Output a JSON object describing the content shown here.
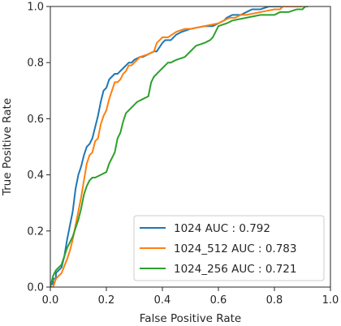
{
  "chart_data": {
    "type": "line",
    "title": "",
    "xlabel": "False Positive Rate",
    "ylabel": "True Positive Rate",
    "xlim": [
      0,
      1
    ],
    "ylim": [
      0,
      1
    ],
    "xticks": [
      "0.0",
      "0.2",
      "0.4",
      "0.6",
      "0.8",
      "1.0"
    ],
    "yticks": [
      "0.0",
      "0.2",
      "0.4",
      "0.6",
      "0.8",
      "1.0"
    ],
    "grid": false,
    "legend_position": "lower right",
    "series": [
      {
        "name": "1024 AUC : 0.792",
        "color": "#1f77b4",
        "x": [
          0.0,
          0.0,
          0.01,
          0.01,
          0.02,
          0.02,
          0.04,
          0.05,
          0.06,
          0.07,
          0.08,
          0.09,
          0.1,
          0.11,
          0.12,
          0.13,
          0.14,
          0.15,
          0.16,
          0.17,
          0.18,
          0.19,
          0.2,
          0.21,
          0.22,
          0.23,
          0.24,
          0.25,
          0.26,
          0.27,
          0.28,
          0.29,
          0.3,
          0.32,
          0.33,
          0.35,
          0.37,
          0.38,
          0.4,
          0.41,
          0.43,
          0.45,
          0.47,
          0.5,
          0.55,
          0.58,
          0.6,
          0.62,
          0.63,
          0.65,
          0.68,
          0.7,
          0.72,
          0.75,
          0.78,
          0.82,
          0.85,
          0.88
        ],
        "y": [
          0.0,
          0.01,
          0.01,
          0.03,
          0.03,
          0.05,
          0.07,
          0.11,
          0.17,
          0.22,
          0.27,
          0.35,
          0.4,
          0.43,
          0.47,
          0.5,
          0.51,
          0.53,
          0.57,
          0.61,
          0.66,
          0.7,
          0.71,
          0.74,
          0.75,
          0.76,
          0.76,
          0.77,
          0.78,
          0.79,
          0.8,
          0.8,
          0.81,
          0.82,
          0.82,
          0.83,
          0.84,
          0.84,
          0.87,
          0.88,
          0.88,
          0.9,
          0.91,
          0.92,
          0.93,
          0.93,
          0.94,
          0.95,
          0.96,
          0.97,
          0.97,
          0.98,
          0.99,
          0.99,
          1.0,
          1.0,
          1.0,
          1.0
        ]
      },
      {
        "name": "1024_512 AUC : 0.783",
        "color": "#ff7f0e",
        "x": [
          0.0,
          0.01,
          0.02,
          0.04,
          0.06,
          0.07,
          0.08,
          0.09,
          0.1,
          0.11,
          0.12,
          0.13,
          0.14,
          0.15,
          0.16,
          0.17,
          0.18,
          0.19,
          0.2,
          0.21,
          0.22,
          0.23,
          0.24,
          0.25,
          0.26,
          0.27,
          0.28,
          0.29,
          0.3,
          0.32,
          0.35,
          0.37,
          0.38,
          0.39,
          0.4,
          0.42,
          0.45,
          0.48,
          0.5,
          0.55,
          0.6,
          0.62,
          0.64,
          0.66,
          0.68,
          0.7,
          0.75,
          0.8,
          0.82,
          0.83,
          0.85,
          0.9
        ],
        "y": [
          0.0,
          0.0,
          0.03,
          0.05,
          0.1,
          0.13,
          0.17,
          0.22,
          0.27,
          0.32,
          0.38,
          0.44,
          0.47,
          0.48,
          0.52,
          0.53,
          0.58,
          0.61,
          0.63,
          0.67,
          0.7,
          0.73,
          0.73,
          0.74,
          0.76,
          0.77,
          0.79,
          0.79,
          0.8,
          0.82,
          0.83,
          0.84,
          0.87,
          0.88,
          0.89,
          0.89,
          0.91,
          0.92,
          0.92,
          0.93,
          0.94,
          0.95,
          0.96,
          0.96,
          0.97,
          0.97,
          0.98,
          0.99,
          0.99,
          1.0,
          1.0,
          1.0
        ]
      },
      {
        "name": "1024_256 AUC : 0.721",
        "color": "#2ca02c",
        "x": [
          0.0,
          0.01,
          0.02,
          0.04,
          0.05,
          0.06,
          0.08,
          0.09,
          0.1,
          0.11,
          0.12,
          0.13,
          0.14,
          0.15,
          0.16,
          0.18,
          0.2,
          0.21,
          0.23,
          0.24,
          0.25,
          0.26,
          0.27,
          0.28,
          0.29,
          0.3,
          0.31,
          0.33,
          0.35,
          0.36,
          0.37,
          0.38,
          0.39,
          0.4,
          0.41,
          0.42,
          0.43,
          0.45,
          0.48,
          0.5,
          0.52,
          0.55,
          0.57,
          0.58,
          0.59,
          0.6,
          0.63,
          0.65,
          0.7,
          0.75,
          0.8,
          0.82,
          0.85,
          0.88,
          0.9,
          0.91,
          0.92
        ],
        "y": [
          0.0,
          0.04,
          0.06,
          0.08,
          0.11,
          0.14,
          0.18,
          0.21,
          0.24,
          0.28,
          0.33,
          0.36,
          0.38,
          0.39,
          0.39,
          0.4,
          0.41,
          0.44,
          0.48,
          0.53,
          0.55,
          0.59,
          0.62,
          0.63,
          0.64,
          0.65,
          0.66,
          0.67,
          0.68,
          0.73,
          0.75,
          0.76,
          0.77,
          0.78,
          0.79,
          0.8,
          0.8,
          0.81,
          0.82,
          0.84,
          0.86,
          0.87,
          0.88,
          0.89,
          0.91,
          0.93,
          0.94,
          0.95,
          0.96,
          0.97,
          0.97,
          0.98,
          0.98,
          0.99,
          0.99,
          1.0,
          1.0
        ]
      }
    ]
  }
}
